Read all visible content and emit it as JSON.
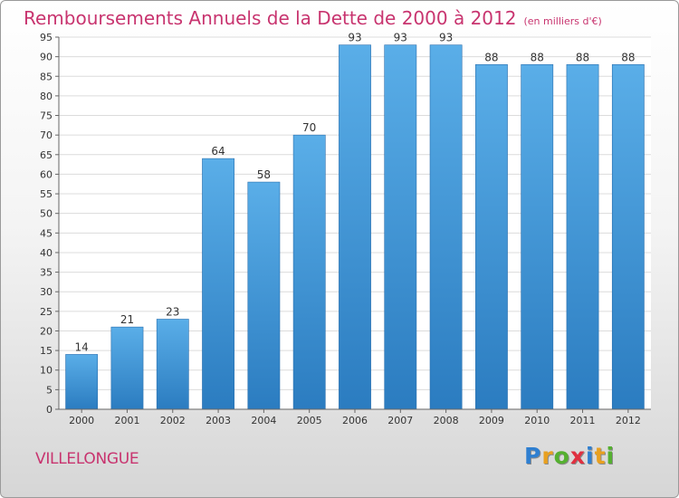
{
  "header": {
    "title": "Remboursements Annuels de la Dette de 2000 à 2012",
    "subtitle": "(en milliers d'€)"
  },
  "footer": {
    "commune": "VILLELONGUE",
    "logo_letters": [
      "P",
      "r",
      "o",
      "x",
      "i",
      "t",
      "i"
    ],
    "logo_colors": [
      "#2f7fd0",
      "#e8a020",
      "#55b030",
      "#e03040",
      "#2f7fd0",
      "#e8a020",
      "#55b030"
    ]
  },
  "colors": {
    "bar_top": "#5aaee8",
    "bar_bottom": "#2b7cc0",
    "title": "#c8346f"
  },
  "chart_data": {
    "type": "bar",
    "categories": [
      "2000",
      "2001",
      "2002",
      "2003",
      "2004",
      "2005",
      "2006",
      "2007",
      "2008",
      "2009",
      "2010",
      "2011",
      "2012"
    ],
    "values": [
      14,
      21,
      23,
      64,
      58,
      70,
      93,
      93,
      93,
      88,
      88,
      88,
      88
    ],
    "title": "Remboursements Annuels de la Dette de 2000 à 2012",
    "subtitle": "(en milliers d'€)",
    "ylim": [
      0,
      95
    ],
    "yticks": [
      0,
      5,
      10,
      15,
      20,
      25,
      30,
      35,
      40,
      45,
      50,
      55,
      60,
      65,
      70,
      75,
      80,
      85,
      90,
      95
    ],
    "grid": true,
    "data_labels": true
  }
}
